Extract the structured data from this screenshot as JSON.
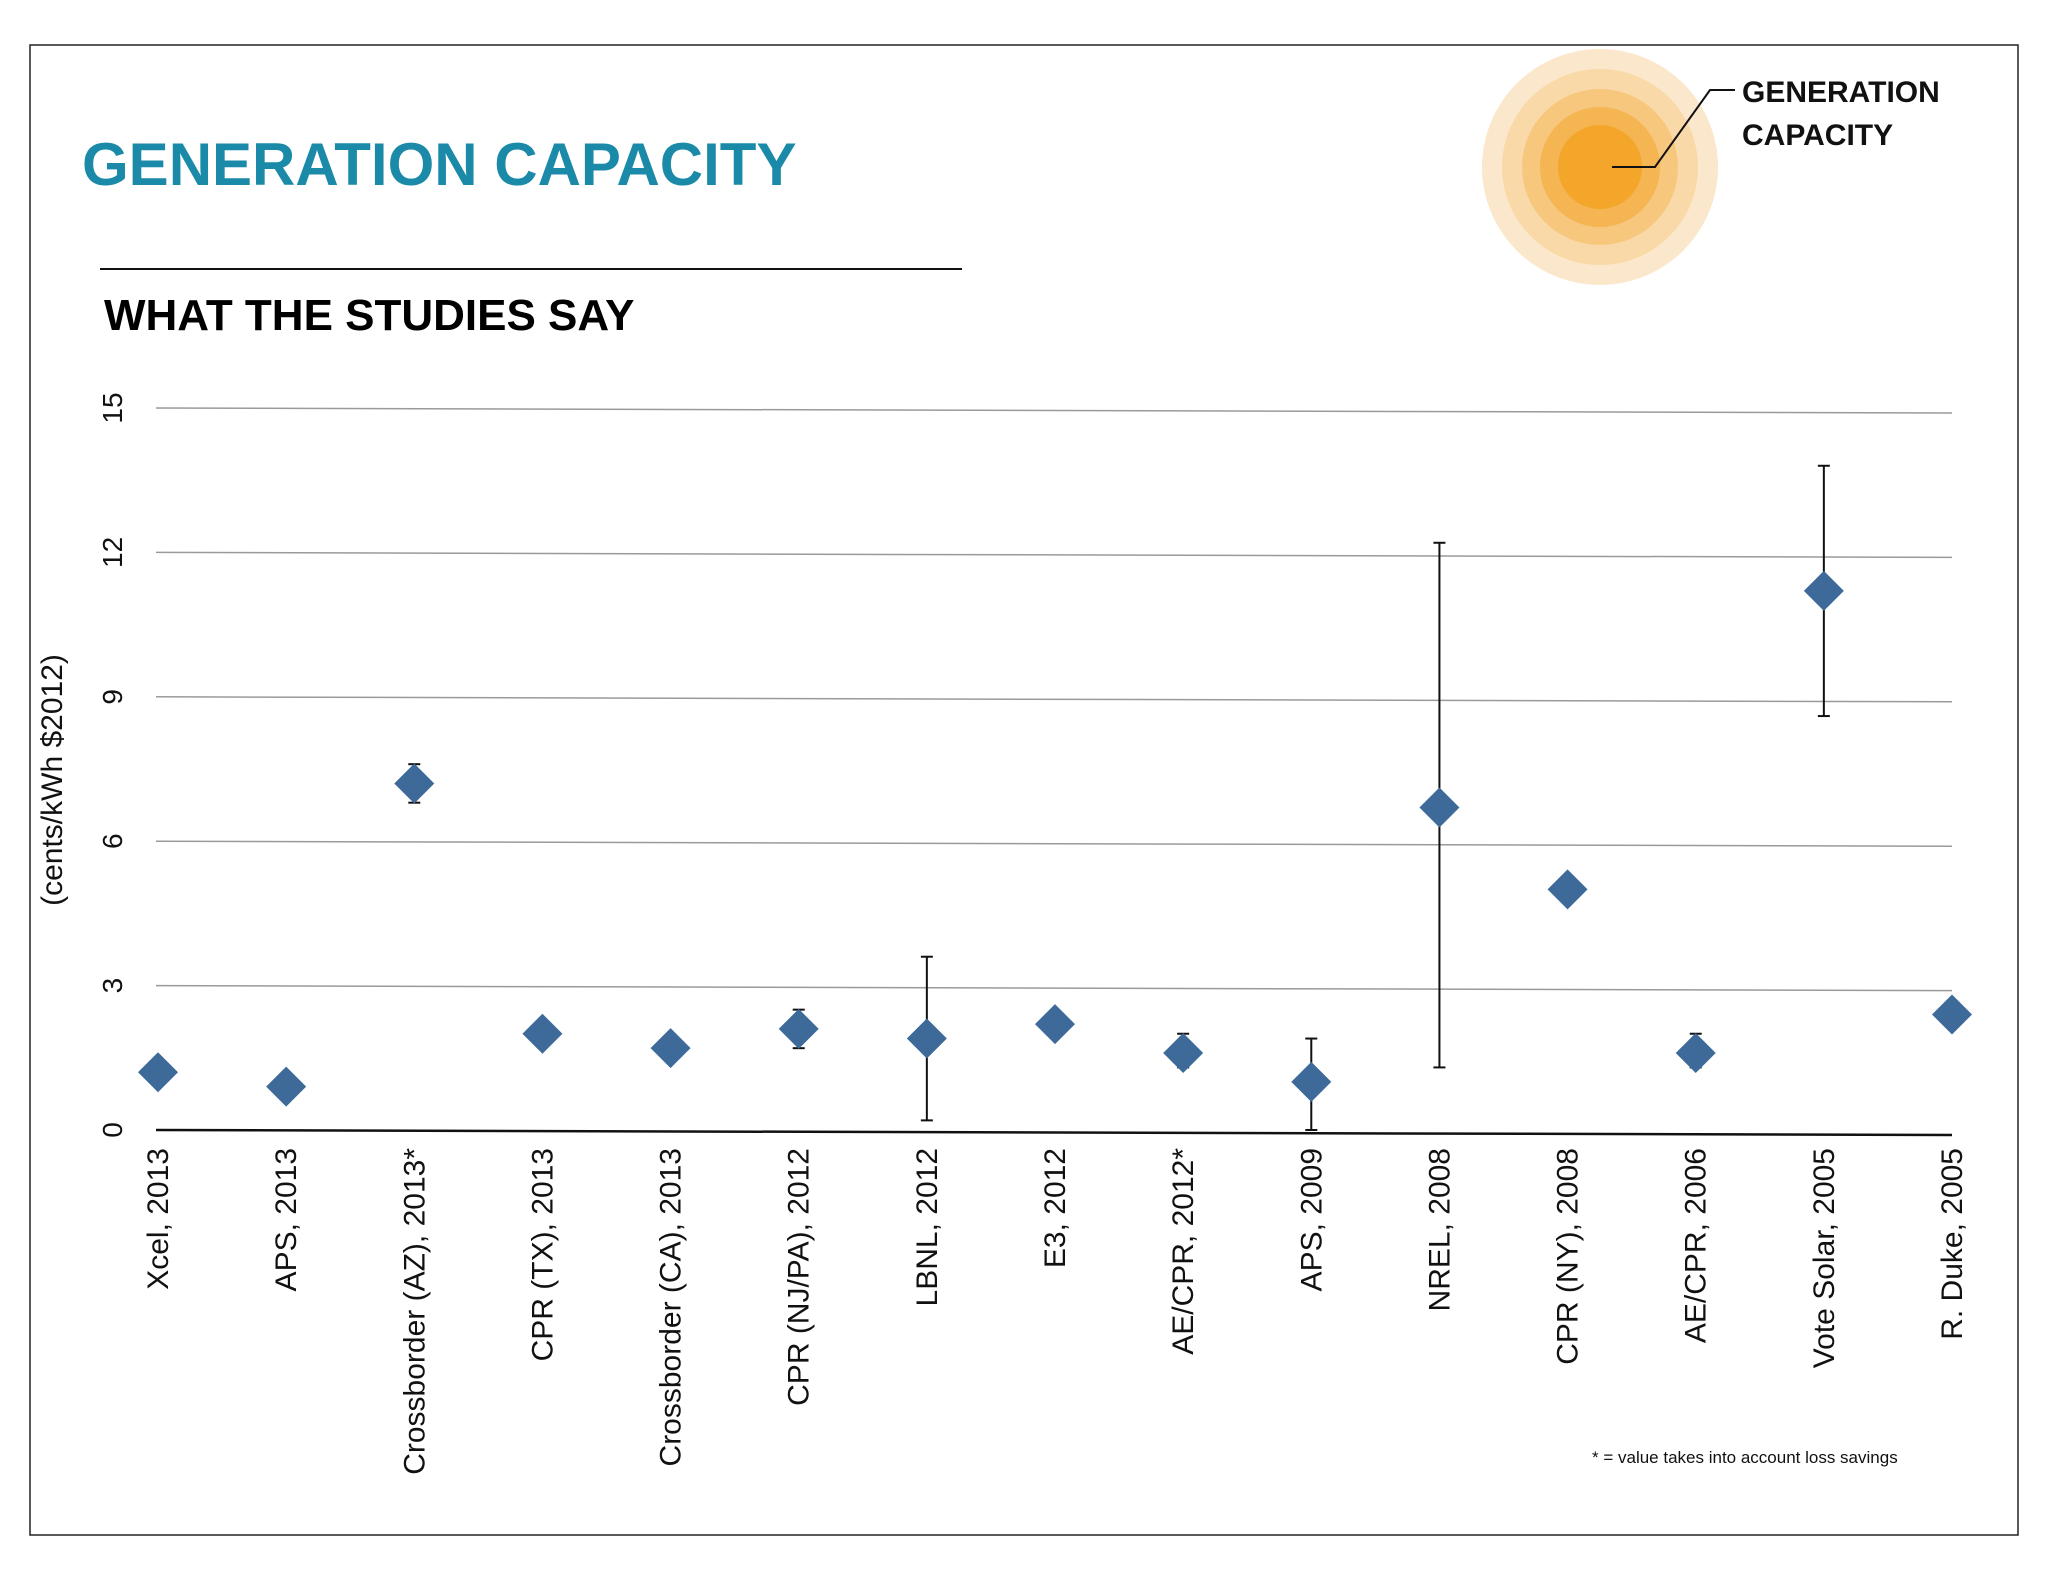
{
  "title": "GENERATION CAPACITY",
  "subtitle": "WHAT THE STUDIES SAY",
  "legend": {
    "line1": "GENERATION",
    "line2": "CAPACITY"
  },
  "footnote": "* = value takes into account loss savings",
  "colors": {
    "title": "#1b8aa8",
    "marker": "#3d6a99",
    "grid": "#9a9a9a",
    "sun": [
      "#fbe8cc",
      "#f9d9a8",
      "#f7c77e",
      "#f5b552",
      "#f3a62a"
    ]
  },
  "chart_data": {
    "type": "scatter",
    "title": "GENERATION CAPACITY",
    "subtitle": "WHAT THE STUDIES SAY",
    "ylabel": "(cents/kWh $2012)",
    "xlabel": "",
    "ylim": [
      0,
      15
    ],
    "yticks": [
      "0",
      "3",
      "6",
      "9",
      "12",
      "15"
    ],
    "grid": true,
    "categories": [
      "Xcel, 2013",
      "APS, 2013",
      "Crossborder (AZ), 2013*",
      "CPR (TX), 2013",
      "Crossborder (CA), 2013",
      "CPR (NJ/PA), 2012",
      "LBNL, 2012",
      "E3, 2012",
      "AE/CPR, 2012*",
      "APS, 2009",
      "NREL, 2008",
      "CPR (NY), 2008",
      "AE/CPR, 2006",
      "Vote Solar, 2005",
      "R. Duke, 2005"
    ],
    "values": [
      1.2,
      0.9,
      7.2,
      2.0,
      1.7,
      2.1,
      1.9,
      2.2,
      1.6,
      1.0,
      6.7,
      5.0,
      1.6,
      11.2,
      2.4
    ],
    "error_low": [
      null,
      null,
      6.8,
      1.9,
      null,
      1.7,
      0.2,
      null,
      1.3,
      0.0,
      1.3,
      null,
      1.3,
      8.6,
      null
    ],
    "error_high": [
      null,
      null,
      7.6,
      2.2,
      null,
      2.5,
      3.6,
      null,
      2.0,
      1.9,
      12.2,
      null,
      2.0,
      13.8,
      null
    ]
  }
}
